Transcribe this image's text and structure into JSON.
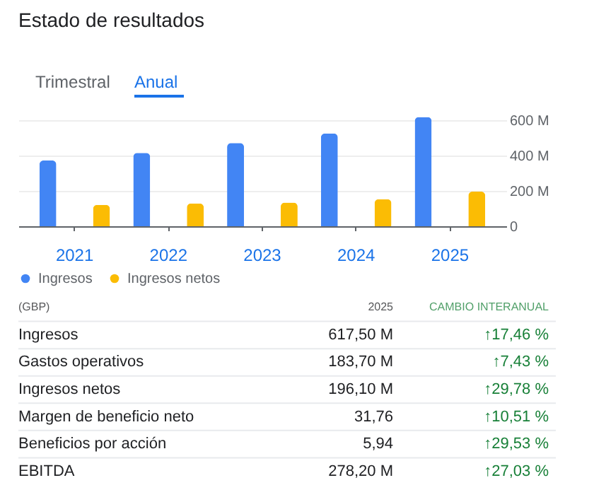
{
  "chart_data": [
    {
      "type": "bar",
      "title": "Estado de resultados",
      "annotations": [
        "Trimestral",
        "Anual"
      ],
      "categories": [
        "2021",
        "2022",
        "2023",
        "2024",
        "2025"
      ],
      "series": [
        {
          "name": "Ingresos",
          "color": "#4285f4",
          "values": [
            372,
            415,
            471,
            525,
            618
          ]
        },
        {
          "name": "Ingresos netos",
          "color": "#fbbc04",
          "values": [
            121,
            129,
            134,
            153,
            196
          ]
        }
      ],
      "ylim": [
        0,
        640
      ],
      "yticks": [
        0,
        {
          "value": 200,
          "label": "200 M"
        },
        {
          "value": 400,
          "label": "400 M"
        },
        {
          "value": 600,
          "label": "600 M"
        }
      ],
      "grid": "y",
      "legend": "bottom left"
    },
    {
      "type": "other",
      "annotations": [
        "(GBP)",
        "2025",
        "CAMBIO INTERANUAL",
        "Ingresos",
        "617,50 M",
        "↑17,46 %",
        "Gastos operativos",
        "183,70 M",
        "↑7,43 %",
        "Ingresos netos",
        "196,10 M",
        "↑29,78 %",
        "Margen de beneficio neto",
        "31,76",
        "↑10,51 %",
        "Beneficios por acción",
        "5,94",
        "↑29,53 %",
        "EBITDA",
        "278,20 M",
        "↑27,03 %"
      ]
    }
  ]
}
